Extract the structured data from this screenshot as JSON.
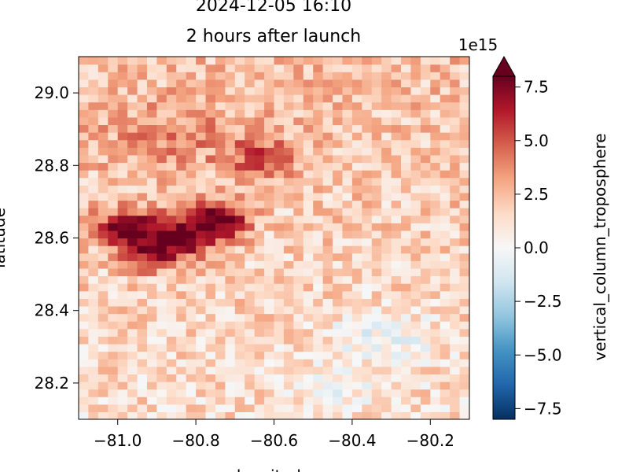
{
  "chart_data": {
    "type": "heatmap",
    "title_line1": "2024-12-05 16:10",
    "title_line2": "2 hours after launch",
    "xlabel": "longitude",
    "ylabel": "latitude",
    "xlim": [
      -81.1,
      -80.1
    ],
    "ylim": [
      28.1,
      29.1
    ],
    "x_ticks": [
      -81.0,
      -80.8,
      -80.6,
      -80.4,
      -80.2
    ],
    "x_tick_labels": [
      "−81.0",
      "−80.8",
      "−80.6",
      "−80.4",
      "−80.2"
    ],
    "y_ticks": [
      28.2,
      28.4,
      28.6,
      28.8,
      29.0
    ],
    "y_tick_labels": [
      "28.2",
      "28.4",
      "28.6",
      "28.8",
      "29.0"
    ],
    "grid": false,
    "colorbar": {
      "label": "vertical_column_troposphere",
      "offset_text": "1e15",
      "colormap": "RdBu_r",
      "vmin": -8.0,
      "vmax": 8.0,
      "extend": "max",
      "ticks": [
        -7.5,
        -5.0,
        -2.5,
        0.0,
        2.5,
        5.0,
        7.5
      ],
      "tick_labels": [
        "−7.5",
        "−5.0",
        "−2.5",
        "0.0",
        "2.5",
        "5.0",
        "7.5"
      ]
    },
    "grid_shape": {
      "nx": 40,
      "ny": 48
    },
    "field": {
      "background_mean": 1.8,
      "pattern_noise": 1.6,
      "north_increase": 1.0,
      "hotspots": [
        {
          "lon": -80.98,
          "lat": 28.63,
          "sigma_lon": 0.06,
          "sigma_lat": 0.035,
          "amplitude": 5.5
        },
        {
          "lon": -80.85,
          "lat": 28.6,
          "sigma_lon": 0.07,
          "sigma_lat": 0.045,
          "amplitude": 5.5
        },
        {
          "lon": -80.74,
          "lat": 28.65,
          "sigma_lon": 0.05,
          "sigma_lat": 0.035,
          "amplitude": 6.0
        },
        {
          "lon": -80.93,
          "lat": 28.55,
          "sigma_lon": 0.05,
          "sigma_lat": 0.03,
          "amplitude": 3.5
        },
        {
          "lon": -80.63,
          "lat": 28.82,
          "sigma_lon": 0.06,
          "sigma_lat": 0.04,
          "amplitude": 3.0
        },
        {
          "lon": -80.85,
          "lat": 28.88,
          "sigma_lon": 0.15,
          "sigma_lat": 0.07,
          "amplitude": 1.6
        }
      ],
      "cool_patches": [
        {
          "lon": -80.32,
          "lat": 28.33,
          "sigma_lon": 0.1,
          "sigma_lat": 0.06,
          "amplitude": -1.8
        },
        {
          "lon": -80.45,
          "lat": 28.18,
          "sigma_lon": 0.08,
          "sigma_lat": 0.04,
          "amplitude": -1.2
        }
      ]
    }
  }
}
